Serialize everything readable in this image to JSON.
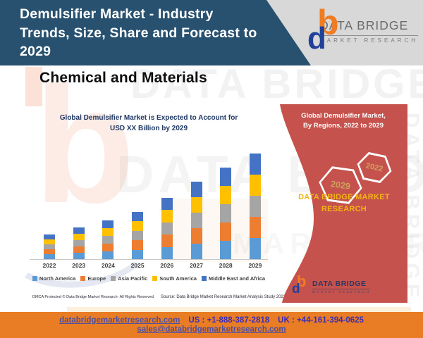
{
  "header": {
    "title": "Demulsifier Market - Industry Trends, Size, Share and Forecast to 2029",
    "logo": {
      "glyph_b": "b",
      "glyph_d": "d",
      "brand": "DATA BRIDGE",
      "tagline": "MARKET RESEARCH"
    }
  },
  "page": {
    "category_heading": "Chemical and Materials"
  },
  "chart_data": {
    "type": "bar",
    "stacked": true,
    "title": "Global Demulsifier Market is Expected to Account for USD XX Billion by 2029",
    "title_lines": [
      "Global Demulsifier Market is Expected to Account for",
      "USD XX Billion by 2029"
    ],
    "categories": [
      "2022",
      "2023",
      "2024",
      "2025",
      "2026",
      "2027",
      "2028",
      "2029"
    ],
    "series": [
      {
        "name": "North America",
        "color": "#5b9bd5",
        "values": [
          1.4,
          1.8,
          2.2,
          2.7,
          3.5,
          4.4,
          5.2,
          6.0
        ]
      },
      {
        "name": "Europe",
        "color": "#ed7d31",
        "values": [
          1.4,
          1.8,
          2.2,
          2.7,
          3.5,
          4.4,
          5.2,
          6.0
        ]
      },
      {
        "name": "Asia Pacific",
        "color": "#a5a5a5",
        "values": [
          1.4,
          1.8,
          2.2,
          2.7,
          3.5,
          4.4,
          5.2,
          6.0
        ]
      },
      {
        "name": "South America",
        "color": "#ffc000",
        "values": [
          1.4,
          1.8,
          2.2,
          2.7,
          3.5,
          4.4,
          5.2,
          6.0
        ]
      },
      {
        "name": "Middle East and Africa",
        "color": "#4472c4",
        "values": [
          1.4,
          1.8,
          2.2,
          2.7,
          3.5,
          4.4,
          5.2,
          6.0
        ]
      }
    ],
    "xlabel": "",
    "ylabel": "",
    "y_axis_visible": false,
    "grid": false,
    "legend_position": "bottom",
    "value_note": "Actual values not disclosed in figure (shown as USD XX Billion); series magnitudes estimated from stacked bar heights, equal split across regions"
  },
  "side_panel": {
    "title_lines": [
      "Global Demulsifier Market,",
      "By Regions, 2022 to 2029"
    ],
    "hexagons": [
      "2022",
      "2029"
    ],
    "brand_caption": "DATA BRIDGE MARKET RESEARCH",
    "bg_color": "#c5524c",
    "caption_color": "#f2b511",
    "logo": {
      "brand": "DATA BRIDGE",
      "tagline": "MARKET RESEARCH"
    }
  },
  "footnotes": {
    "dmca": "DMCA Protected © Data Bridge Market Research- All Rights Reserved.",
    "source": "Source: Data Bridge Market Research Market Analysis Study 2022"
  },
  "footer": {
    "website": "databridgemarketresearch.com",
    "us_phone": "US : +1-888-387-2818",
    "uk_phone": "UK : +44-161-394-0625",
    "email": "sales@databridgemarketresearch.com",
    "bg_color": "#e87d26"
  },
  "watermark": {
    "text": "DATA BRIDGE",
    "text2": "MARKET RESEARCH"
  },
  "colors": {
    "header_navy": "#28506f",
    "header_gray": "#d8d8d8",
    "logo_orange": "#f07c22",
    "logo_navy": "#21409a"
  }
}
